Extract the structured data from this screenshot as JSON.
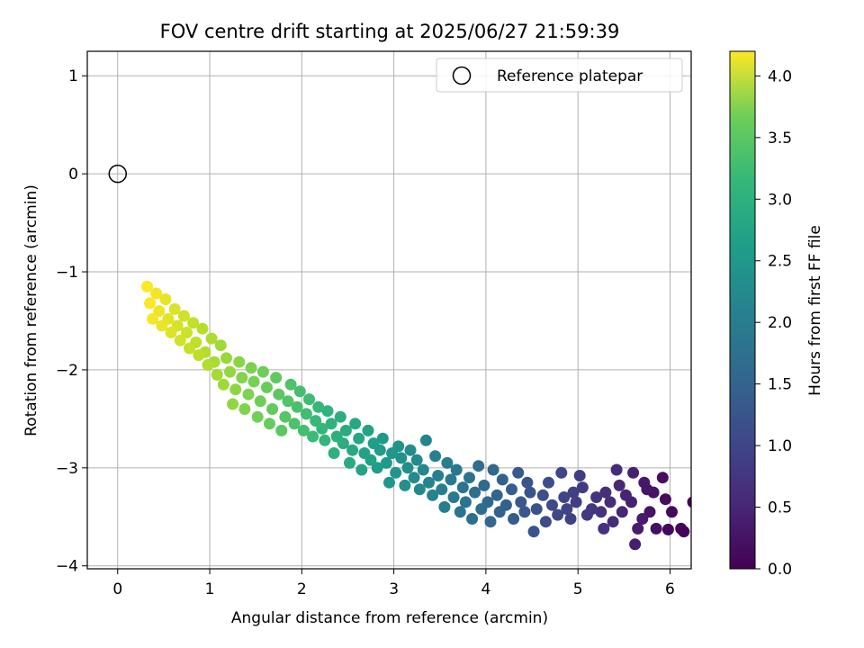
{
  "chart_data": {
    "type": "scatter",
    "title": "FOV centre drift starting at 2025/06/27 21:59:39",
    "xlabel": "Angular distance from reference (arcmin)",
    "ylabel": "Rotation from reference (arcmin)",
    "xlim": [
      -0.33,
      6.23
    ],
    "ylim": [
      -4.03,
      1.25
    ],
    "xticks": [
      0,
      1,
      2,
      3,
      4,
      5,
      6
    ],
    "yticks": [
      1,
      0,
      -1,
      -2,
      -3,
      -4
    ],
    "grid": true,
    "legend": {
      "position": "top-right",
      "entries": [
        "Reference platepar"
      ]
    },
    "reference_point": {
      "x": 0,
      "y": 0
    },
    "colorbar": {
      "label": "Hours from first FF file",
      "range": [
        0,
        4.2
      ],
      "ticks": [
        "0.0",
        "0.5",
        "1.0",
        "1.5",
        "2.0",
        "2.5",
        "3.0",
        "3.5",
        "4.0"
      ],
      "colormap": "viridis"
    },
    "series": [
      {
        "points": [
          [
            6.25,
            -3.35,
            0.02
          ],
          [
            6.15,
            -3.65,
            0.03
          ],
          [
            6.12,
            -3.62,
            0.05
          ],
          [
            6.02,
            -3.45,
            0.08
          ],
          [
            5.98,
            -3.63,
            0.1
          ],
          [
            5.95,
            -3.32,
            0.12
          ],
          [
            5.92,
            -3.1,
            0.15
          ],
          [
            5.85,
            -3.62,
            0.18
          ],
          [
            5.82,
            -3.25,
            0.2
          ],
          [
            5.78,
            -3.45,
            0.22
          ],
          [
            5.75,
            -3.22,
            0.25
          ],
          [
            5.72,
            -3.15,
            0.28
          ],
          [
            5.7,
            -3.52,
            0.3
          ],
          [
            5.65,
            -3.62,
            0.32
          ],
          [
            5.62,
            -3.78,
            0.35
          ],
          [
            5.6,
            -3.05,
            0.38
          ],
          [
            5.58,
            -3.35,
            0.4
          ],
          [
            5.52,
            -3.28,
            0.42
          ],
          [
            5.48,
            -3.45,
            0.45
          ],
          [
            5.45,
            -3.18,
            0.48
          ],
          [
            5.42,
            -3.02,
            0.5
          ],
          [
            5.38,
            -3.55,
            0.52
          ],
          [
            5.35,
            -3.35,
            0.55
          ],
          [
            5.3,
            -3.25,
            0.58
          ],
          [
            5.28,
            -3.62,
            0.6
          ],
          [
            5.25,
            -3.45,
            0.62
          ],
          [
            5.2,
            -3.3,
            0.65
          ],
          [
            5.15,
            -3.42,
            0.68
          ],
          [
            5.1,
            -3.48,
            0.7
          ],
          [
            5.05,
            -3.2,
            0.72
          ],
          [
            5.02,
            -3.08,
            0.75
          ],
          [
            4.98,
            -3.35,
            0.78
          ],
          [
            4.95,
            -3.25,
            0.8
          ],
          [
            4.92,
            -3.52,
            0.82
          ],
          [
            4.88,
            -3.42,
            0.85
          ],
          [
            4.85,
            -3.3,
            0.88
          ],
          [
            4.82,
            -3.05,
            0.9
          ],
          [
            4.78,
            -3.48,
            0.92
          ],
          [
            4.72,
            -3.38,
            0.95
          ],
          [
            4.68,
            -3.15,
            0.98
          ],
          [
            4.65,
            -3.55,
            1.0
          ],
          [
            4.62,
            -3.28,
            1.02
          ],
          [
            4.55,
            -3.42,
            1.05
          ],
          [
            4.52,
            -3.65,
            1.08
          ],
          [
            4.48,
            -3.25,
            1.1
          ],
          [
            4.45,
            -3.15,
            1.12
          ],
          [
            4.42,
            -3.45,
            1.15
          ],
          [
            4.38,
            -3.35,
            1.18
          ],
          [
            4.35,
            -3.05,
            1.2
          ],
          [
            4.3,
            -3.52,
            1.22
          ],
          [
            4.28,
            -3.22,
            1.25
          ],
          [
            4.22,
            -3.38,
            1.28
          ],
          [
            4.18,
            -3.12,
            1.3
          ],
          [
            4.15,
            -3.45,
            1.32
          ],
          [
            4.12,
            -3.28,
            1.35
          ],
          [
            4.08,
            -3.02,
            1.38
          ],
          [
            4.05,
            -3.55,
            1.4
          ],
          [
            4.02,
            -3.35,
            1.42
          ],
          [
            3.98,
            -3.18,
            1.45
          ],
          [
            3.95,
            -3.42,
            1.48
          ],
          [
            3.92,
            -2.98,
            1.5
          ],
          [
            3.88,
            -3.25,
            1.52
          ],
          [
            3.85,
            -3.52,
            1.55
          ],
          [
            3.82,
            -3.1,
            1.58
          ],
          [
            3.78,
            -3.35,
            1.6
          ],
          [
            3.75,
            -3.2,
            1.62
          ],
          [
            3.72,
            -3.45,
            1.65
          ],
          [
            3.68,
            -3.02,
            1.68
          ],
          [
            3.65,
            -3.3,
            1.7
          ],
          [
            3.62,
            -3.12,
            1.72
          ],
          [
            3.58,
            -2.95,
            1.75
          ],
          [
            3.55,
            -3.4,
            1.78
          ],
          [
            3.52,
            -3.22,
            1.8
          ],
          [
            3.48,
            -3.08,
            1.82
          ],
          [
            3.45,
            -2.88,
            1.85
          ],
          [
            3.42,
            -3.28,
            1.88
          ],
          [
            3.38,
            -3.15,
            1.9
          ],
          [
            3.35,
            -2.72,
            1.92
          ],
          [
            3.32,
            -3.02,
            1.95
          ],
          [
            3.28,
            -3.22,
            1.98
          ],
          [
            3.25,
            -2.92,
            2.0
          ],
          [
            3.22,
            -3.1,
            2.02
          ],
          [
            3.18,
            -2.82,
            2.05
          ],
          [
            3.15,
            -3.0,
            2.08
          ],
          [
            3.12,
            -3.18,
            2.1
          ],
          [
            3.08,
            -2.9,
            2.12
          ],
          [
            3.05,
            -2.78,
            2.15
          ],
          [
            3.02,
            -3.05,
            2.18
          ],
          [
            2.98,
            -2.85,
            2.2
          ],
          [
            2.95,
            -3.15,
            2.22
          ],
          [
            2.92,
            -2.95,
            2.25
          ],
          [
            2.88,
            -2.7,
            2.28
          ],
          [
            2.85,
            -2.82,
            2.3
          ],
          [
            2.82,
            -3.0,
            2.32
          ],
          [
            2.78,
            -2.75,
            2.35
          ],
          [
            2.75,
            -2.92,
            2.38
          ],
          [
            2.72,
            -2.62,
            2.4
          ],
          [
            2.68,
            -2.85,
            2.42
          ],
          [
            2.65,
            -3.02,
            2.45
          ],
          [
            2.62,
            -2.7,
            2.48
          ],
          [
            2.58,
            -2.55,
            2.5
          ],
          [
            2.55,
            -2.82,
            2.52
          ],
          [
            2.52,
            -2.95,
            2.55
          ],
          [
            2.48,
            -2.62,
            2.58
          ],
          [
            2.45,
            -2.75,
            2.6
          ],
          [
            2.42,
            -2.48,
            2.62
          ],
          [
            2.38,
            -2.68,
            2.65
          ],
          [
            2.35,
            -2.85,
            2.68
          ],
          [
            2.32,
            -2.55,
            2.7
          ],
          [
            2.28,
            -2.42,
            2.72
          ],
          [
            2.25,
            -2.72,
            2.75
          ],
          [
            2.22,
            -2.6,
            2.78
          ],
          [
            2.18,
            -2.38,
            2.8
          ],
          [
            2.15,
            -2.52,
            2.82
          ],
          [
            2.12,
            -2.68,
            2.85
          ],
          [
            2.08,
            -2.3,
            2.88
          ],
          [
            2.05,
            -2.45,
            2.9
          ],
          [
            2.02,
            -2.62,
            2.92
          ],
          [
            1.98,
            -2.22,
            2.95
          ],
          [
            1.95,
            -2.38,
            2.98
          ],
          [
            1.92,
            -2.55,
            3.0
          ],
          [
            1.88,
            -2.15,
            3.02
          ],
          [
            1.85,
            -2.32,
            3.05
          ],
          [
            1.82,
            -2.48,
            3.08
          ],
          [
            1.78,
            -2.62,
            3.1
          ],
          [
            1.75,
            -2.25,
            3.12
          ],
          [
            1.72,
            -2.08,
            3.15
          ],
          [
            1.68,
            -2.4,
            3.18
          ],
          [
            1.65,
            -2.55,
            3.2
          ],
          [
            1.62,
            -2.18,
            3.22
          ],
          [
            1.58,
            -2.02,
            3.25
          ],
          [
            1.55,
            -2.32,
            3.28
          ],
          [
            1.52,
            -2.48,
            3.3
          ],
          [
            1.48,
            -2.12,
            3.32
          ],
          [
            1.45,
            -1.98,
            3.35
          ],
          [
            1.42,
            -2.25,
            3.38
          ],
          [
            1.38,
            -2.4,
            3.4
          ],
          [
            1.35,
            -2.08,
            3.42
          ],
          [
            1.32,
            -1.92,
            3.45
          ],
          [
            1.28,
            -2.2,
            3.48
          ],
          [
            1.25,
            -2.35,
            3.5
          ],
          [
            1.22,
            -2.02,
            3.52
          ],
          [
            1.18,
            -1.88,
            3.55
          ],
          [
            1.15,
            -2.15,
            3.58
          ],
          [
            1.12,
            -1.75,
            3.6
          ],
          [
            1.08,
            -2.05,
            3.62
          ],
          [
            1.05,
            -1.92,
            3.65
          ],
          [
            1.02,
            -1.68,
            3.68
          ],
          [
            0.98,
            -1.95,
            3.7
          ],
          [
            0.95,
            -1.82,
            3.72
          ],
          [
            0.92,
            -1.58,
            3.75
          ],
          [
            0.88,
            -1.85,
            3.78
          ],
          [
            0.85,
            -1.72,
            3.8
          ],
          [
            0.82,
            -1.52,
            3.82
          ],
          [
            0.78,
            -1.78,
            3.85
          ],
          [
            0.75,
            -1.62,
            3.88
          ],
          [
            0.72,
            -1.45,
            3.9
          ],
          [
            0.68,
            -1.7,
            3.92
          ],
          [
            0.65,
            -1.55,
            3.95
          ],
          [
            0.62,
            -1.38,
            3.98
          ],
          [
            0.58,
            -1.62,
            4.0
          ],
          [
            0.55,
            -1.48,
            4.02
          ],
          [
            0.52,
            -1.28,
            4.05
          ],
          [
            0.48,
            -1.55,
            4.08
          ],
          [
            0.45,
            -1.4,
            4.1
          ],
          [
            0.42,
            -1.22,
            4.12
          ],
          [
            0.38,
            -1.48,
            4.15
          ],
          [
            0.35,
            -1.32,
            4.18
          ],
          [
            0.32,
            -1.15,
            4.2
          ]
        ]
      }
    ]
  }
}
